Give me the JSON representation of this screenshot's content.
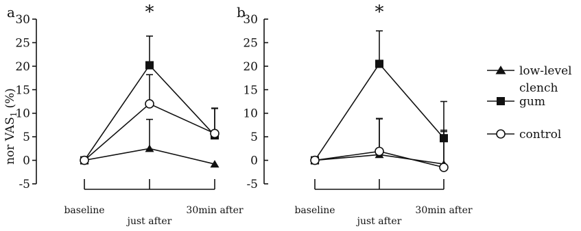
{
  "y_axis_label": {
    "main": "nor VAS",
    "sub": "1",
    "unit": "(%)"
  },
  "legend": [
    {
      "name": "low-level clench",
      "line1": "low-level",
      "line2": "clench",
      "marker": "triangle"
    },
    {
      "name": "gum",
      "marker": "square"
    },
    {
      "name": "control",
      "marker": "circle"
    }
  ],
  "chart_data": [
    {
      "type": "line",
      "panel": "a",
      "categories": [
        "baseline",
        "just after",
        "30min after"
      ],
      "ylim": [
        -5,
        30
      ],
      "yticks": [
        "-5",
        "0",
        "5",
        "10",
        "15",
        "20",
        "25",
        "30"
      ],
      "ylabel": "nor VAS1 (%)",
      "significance": {
        "category": "just after",
        "label": "*"
      },
      "series": [
        {
          "name": "low-level clench",
          "marker": "triangle",
          "values": [
            0,
            2.5,
            -0.8
          ],
          "error": [
            0,
            6.2,
            0
          ]
        },
        {
          "name": "gum",
          "marker": "square",
          "values": [
            0,
            20.2,
            5.3
          ],
          "error": [
            0,
            6.2,
            5.8
          ]
        },
        {
          "name": "control",
          "marker": "circle",
          "values": [
            0,
            12.0,
            5.7
          ],
          "error": [
            0,
            6.2,
            5.3
          ]
        }
      ]
    },
    {
      "type": "line",
      "panel": "b",
      "categories": [
        "baseline",
        "just after",
        "30min after"
      ],
      "ylim": [
        -5,
        30
      ],
      "yticks": [
        "-5",
        "0",
        "5",
        "10",
        "15",
        "20",
        "25",
        "30"
      ],
      "significance": {
        "category": "just after",
        "label": "*"
      },
      "series": [
        {
          "name": "low-level clench",
          "marker": "triangle",
          "values": [
            0,
            1.2,
            -0.8
          ],
          "error": [
            0,
            7.6,
            7.2
          ]
        },
        {
          "name": "gum",
          "marker": "square",
          "values": [
            0,
            20.5,
            4.7
          ],
          "error": [
            0,
            7.0,
            7.8
          ]
        },
        {
          "name": "control",
          "marker": "circle",
          "values": [
            0,
            1.9,
            -1.5
          ],
          "error": [
            0,
            7.0,
            7.6
          ]
        }
      ]
    }
  ]
}
